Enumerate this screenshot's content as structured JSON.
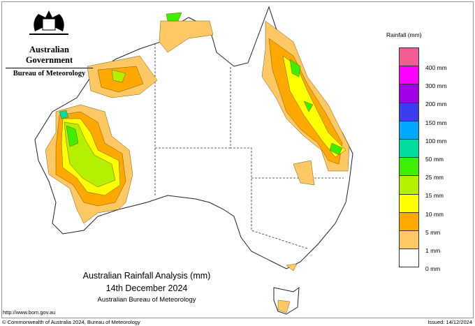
{
  "header": {
    "government": "Australian Government",
    "agency": "Bureau of Meteorology"
  },
  "map": {
    "title": "Australian Rainfall Analysis (mm)",
    "date": "14th December 2024",
    "source": "Australian Bureau of Meteorology"
  },
  "legend": {
    "title": "Rainfall (mm)",
    "colors": [
      "#f25c94",
      "#ff00ff",
      "#a000e8",
      "#3c3cf0",
      "#00a8ff",
      "#00dca0",
      "#3cf000",
      "#b4f000",
      "#ffff00",
      "#ffa800",
      "#ffc864",
      "#ffffff"
    ],
    "labels": [
      "400 mm",
      "300 mm",
      "200 mm",
      "150 mm",
      "100 mm",
      "50 mm",
      "25 mm",
      "15 mm",
      "10 mm",
      "5 mm",
      "1 mm",
      "0 mm"
    ]
  },
  "footer": {
    "url": "http://www.bom.gov.au",
    "copyright": "© Commonwealth of Australia 2024, Bureau of Meteorology",
    "issued": "Issued: 14/12/2024"
  }
}
